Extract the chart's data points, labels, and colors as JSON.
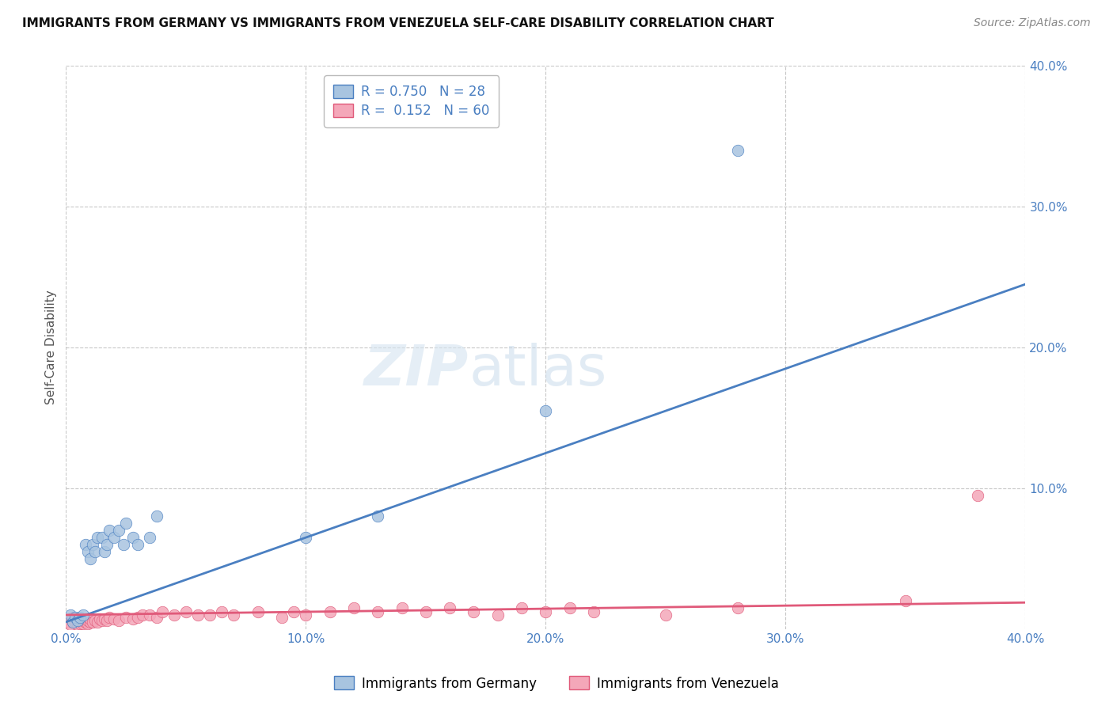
{
  "title": "IMMIGRANTS FROM GERMANY VS IMMIGRANTS FROM VENEZUELA SELF-CARE DISABILITY CORRELATION CHART",
  "source": "Source: ZipAtlas.com",
  "ylabel": "Self-Care Disability",
  "xlim": [
    0.0,
    0.4
  ],
  "ylim": [
    0.0,
    0.4
  ],
  "xticks": [
    0.0,
    0.1,
    0.2,
    0.3,
    0.4
  ],
  "yticks": [
    0.1,
    0.2,
    0.3,
    0.4
  ],
  "xtick_labels": [
    "0.0%",
    "10.0%",
    "20.0%",
    "30.0%",
    "40.0%"
  ],
  "ytick_labels": [
    "10.0%",
    "20.0%",
    "30.0%",
    "40.0%"
  ],
  "germany_color": "#a8c4e0",
  "venezuela_color": "#f4a7b9",
  "germany_line_color": "#4a7fc1",
  "venezuela_line_color": "#e05a7a",
  "germany_R": 0.75,
  "germany_N": 28,
  "venezuela_R": 0.152,
  "venezuela_N": 60,
  "background_color": "#ffffff",
  "grid_color": "#c8c8c8",
  "axis_color": "#4a7fc1",
  "germany_line_slope": 0.6,
  "germany_line_intercept": 0.005,
  "venezuela_line_slope": 0.022,
  "venezuela_line_intercept": 0.01,
  "germany_scatter_x": [
    0.002,
    0.003,
    0.004,
    0.005,
    0.006,
    0.007,
    0.008,
    0.009,
    0.01,
    0.011,
    0.012,
    0.013,
    0.015,
    0.016,
    0.017,
    0.018,
    0.02,
    0.022,
    0.024,
    0.025,
    0.028,
    0.03,
    0.035,
    0.038,
    0.1,
    0.13,
    0.2,
    0.28
  ],
  "germany_scatter_y": [
    0.01,
    0.005,
    0.008,
    0.006,
    0.008,
    0.01,
    0.06,
    0.055,
    0.05,
    0.06,
    0.055,
    0.065,
    0.065,
    0.055,
    0.06,
    0.07,
    0.065,
    0.07,
    0.06,
    0.075,
    0.065,
    0.06,
    0.065,
    0.08,
    0.065,
    0.08,
    0.155,
    0.34
  ],
  "venezuela_scatter_x": [
    0.001,
    0.002,
    0.003,
    0.003,
    0.004,
    0.005,
    0.005,
    0.006,
    0.006,
    0.007,
    0.007,
    0.008,
    0.008,
    0.009,
    0.009,
    0.01,
    0.01,
    0.011,
    0.012,
    0.013,
    0.014,
    0.015,
    0.016,
    0.017,
    0.018,
    0.02,
    0.022,
    0.025,
    0.028,
    0.03,
    0.032,
    0.035,
    0.038,
    0.04,
    0.045,
    0.05,
    0.055,
    0.06,
    0.065,
    0.07,
    0.08,
    0.09,
    0.095,
    0.1,
    0.11,
    0.12,
    0.13,
    0.14,
    0.15,
    0.16,
    0.17,
    0.18,
    0.19,
    0.2,
    0.21,
    0.22,
    0.25,
    0.28,
    0.35,
    0.38
  ],
  "venezuela_scatter_y": [
    0.005,
    0.003,
    0.005,
    0.008,
    0.005,
    0.003,
    0.006,
    0.004,
    0.007,
    0.004,
    0.006,
    0.005,
    0.007,
    0.004,
    0.006,
    0.005,
    0.007,
    0.005,
    0.006,
    0.005,
    0.007,
    0.006,
    0.007,
    0.006,
    0.008,
    0.007,
    0.006,
    0.008,
    0.007,
    0.008,
    0.01,
    0.01,
    0.008,
    0.012,
    0.01,
    0.012,
    0.01,
    0.01,
    0.012,
    0.01,
    0.012,
    0.008,
    0.012,
    0.01,
    0.012,
    0.015,
    0.012,
    0.015,
    0.012,
    0.015,
    0.012,
    0.01,
    0.015,
    0.012,
    0.015,
    0.012,
    0.01,
    0.015,
    0.02,
    0.095
  ]
}
